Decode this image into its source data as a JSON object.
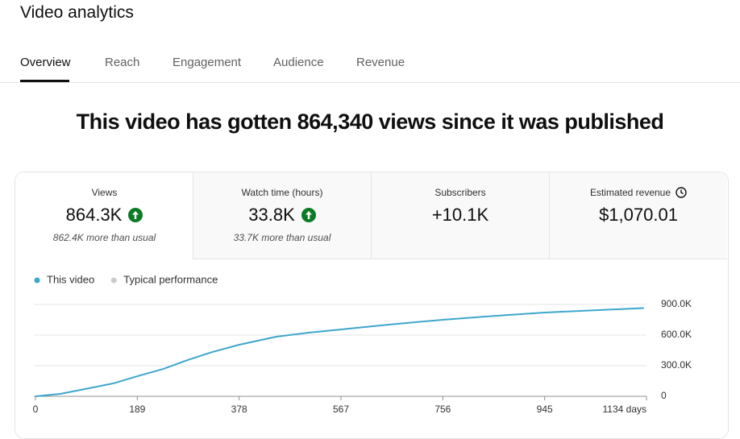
{
  "header": {
    "title": "Video analytics"
  },
  "tabs": [
    "Overview",
    "Reach",
    "Engagement",
    "Audience",
    "Revenue"
  ],
  "headline": "This video has gotten 864,340 views since it was published",
  "metrics": [
    {
      "label": "Views",
      "value": "864.3K",
      "note": "862.4K more than usual"
    },
    {
      "label": "Watch time (hours)",
      "value": "33.8K",
      "note": "33.7K more than usual"
    },
    {
      "label": "Subscribers",
      "value": "+10.1K"
    },
    {
      "label": "Estimated revenue",
      "value": "$1,070.01"
    }
  ],
  "chart_data": {
    "type": "line",
    "x": [
      0,
      46,
      84,
      144,
      189,
      237,
      282,
      328,
      378,
      447,
      507,
      567,
      656,
      756,
      835,
      945,
      1044,
      1129
    ],
    "series": [
      {
        "name": "This video",
        "color": "#3ea6cc",
        "values": [
          0,
          24000,
          63000,
          126000,
          197000,
          268000,
          355000,
          434000,
          505000,
          584000,
          624000,
          655000,
          703000,
          750000,
          782000,
          821000,
          845000,
          864340
        ]
      },
      {
        "name": "Typical performance",
        "color": "#cccccc",
        "values": [
          null,
          null,
          null,
          null,
          null,
          null,
          null,
          null,
          null,
          null,
          null,
          null,
          null,
          null,
          null,
          null,
          null,
          null
        ]
      }
    ],
    "xlim": [
      0,
      1134
    ],
    "xticks": [
      0,
      189,
      378,
      567,
      756,
      945,
      {
        "value": 1134,
        "label": "1134 days"
      }
    ],
    "ylim": [
      0,
      900000
    ],
    "yticks": [
      0,
      {
        "value": 300000,
        "label": "300.0K"
      },
      {
        "value": 600000,
        "label": "600.0K"
      },
      {
        "value": 900000,
        "label": "900.0K"
      }
    ],
    "grid": true
  }
}
